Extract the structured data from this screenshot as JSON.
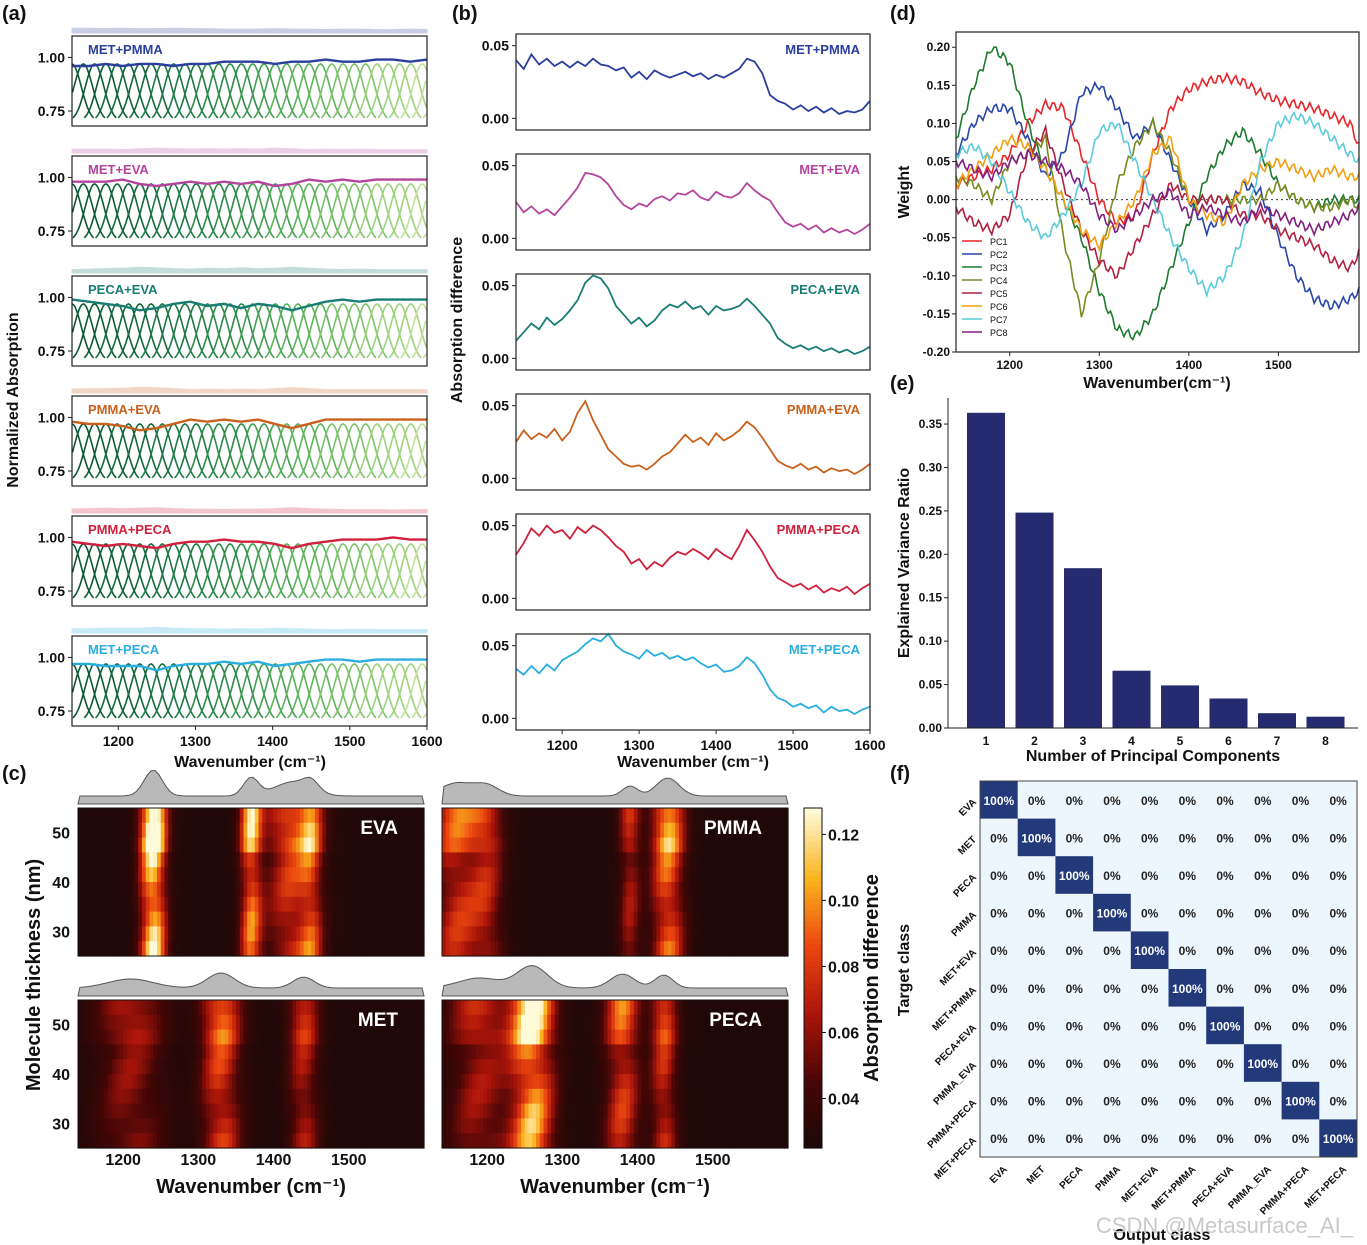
{
  "panel_labels": [
    "(a)",
    "(b)",
    "(c)",
    "(d)",
    "(e)",
    "(f)"
  ],
  "watermark": "CSDN @Metasurface_AI_",
  "chart_data": [
    {
      "id": "a",
      "type": "line",
      "title": "",
      "xlabel": "Wavenumber (cm⁻¹)",
      "ylabel": "Normalized Absorption",
      "xlim": [
        1140,
        1600
      ],
      "ylim": [
        0.68,
        1.1
      ],
      "xticks": [
        "1200",
        "1300",
        "1400",
        "1500",
        "1600"
      ],
      "yticks": [
        "0.75",
        "1.00"
      ],
      "series": [
        {
          "name": "MET+PMMA",
          "color": "#2b3f9e",
          "envelope": [
            0.96,
            0.96,
            0.97,
            0.96,
            0.97,
            0.97,
            0.96,
            0.97,
            0.97,
            0.98,
            0.98,
            0.98,
            0.97,
            0.98,
            0.98,
            0.99,
            0.98,
            0.98,
            0.99,
            0.99,
            0.98,
            0.99
          ]
        },
        {
          "name": "MET+EVA",
          "color": "#b5449e",
          "envelope": [
            0.98,
            0.98,
            0.98,
            0.99,
            0.97,
            0.96,
            0.97,
            0.98,
            0.97,
            0.98,
            0.97,
            0.98,
            0.96,
            0.97,
            0.99,
            0.98,
            0.99,
            0.98,
            0.99,
            0.99,
            0.99,
            0.99
          ]
        },
        {
          "name": "PECA+EVA",
          "color": "#1a7d73",
          "envelope": [
            0.99,
            0.98,
            0.97,
            0.96,
            0.94,
            0.95,
            0.97,
            0.98,
            0.96,
            0.97,
            0.95,
            0.97,
            0.96,
            0.94,
            0.96,
            0.98,
            0.99,
            0.98,
            0.99,
            0.99,
            0.99,
            0.99
          ]
        },
        {
          "name": "PMMA+EVA",
          "color": "#c9611e",
          "envelope": [
            0.98,
            0.97,
            0.97,
            0.96,
            0.94,
            0.95,
            0.97,
            0.99,
            0.98,
            0.99,
            0.98,
            0.99,
            0.97,
            0.95,
            0.97,
            0.99,
            0.99,
            0.99,
            0.99,
            0.99,
            0.99,
            0.99
          ]
        },
        {
          "name": "PMMA+PECA",
          "color": "#d0203c",
          "envelope": [
            0.98,
            0.97,
            0.96,
            0.97,
            0.96,
            0.95,
            0.97,
            0.98,
            0.98,
            0.99,
            0.98,
            0.98,
            0.97,
            0.95,
            0.97,
            0.98,
            0.99,
            0.99,
            0.99,
            1.0,
            0.99,
            0.99
          ]
        },
        {
          "name": "MET+PECA",
          "color": "#2aaee0",
          "envelope": [
            0.97,
            0.97,
            0.96,
            0.96,
            0.96,
            0.94,
            0.96,
            0.97,
            0.97,
            0.98,
            0.97,
            0.98,
            0.96,
            0.97,
            0.98,
            0.99,
            0.99,
            0.98,
            0.99,
            0.99,
            0.99,
            0.99
          ]
        }
      ]
    },
    {
      "id": "b",
      "type": "line",
      "title": "",
      "xlabel": "Wavenumber (cm⁻¹)",
      "ylabel": "Absorption difference",
      "xlim": [
        1140,
        1600
      ],
      "ylim": [
        -0.008,
        0.058
      ],
      "xticks": [
        "1200",
        "1300",
        "1400",
        "1500",
        "1600"
      ],
      "yticks": [
        "0.00",
        "0.05"
      ],
      "x": [
        1140,
        1150,
        1160,
        1170,
        1180,
        1190,
        1200,
        1210,
        1220,
        1230,
        1240,
        1250,
        1260,
        1270,
        1280,
        1290,
        1300,
        1310,
        1320,
        1330,
        1340,
        1350,
        1360,
        1370,
        1380,
        1390,
        1400,
        1410,
        1420,
        1430,
        1440,
        1450,
        1460,
        1470,
        1480,
        1490,
        1500,
        1510,
        1520,
        1530,
        1540,
        1550,
        1560,
        1570,
        1580,
        1590,
        1600
      ],
      "series": [
        {
          "name": "MET+PMMA",
          "color": "#2b3f9e",
          "values": [
            0.04,
            0.034,
            0.044,
            0.037,
            0.041,
            0.036,
            0.039,
            0.035,
            0.039,
            0.036,
            0.041,
            0.037,
            0.036,
            0.033,
            0.035,
            0.028,
            0.032,
            0.027,
            0.033,
            0.03,
            0.028,
            0.03,
            0.032,
            0.029,
            0.031,
            0.027,
            0.03,
            0.028,
            0.031,
            0.034,
            0.041,
            0.039,
            0.031,
            0.016,
            0.012,
            0.01,
            0.006,
            0.009,
            0.005,
            0.008,
            0.004,
            0.007,
            0.003,
            0.005,
            0.004,
            0.006,
            0.012
          ]
        },
        {
          "name": "MET+EVA",
          "color": "#b5449e",
          "values": [
            0.025,
            0.018,
            0.022,
            0.017,
            0.02,
            0.016,
            0.022,
            0.028,
            0.035,
            0.045,
            0.044,
            0.042,
            0.037,
            0.029,
            0.023,
            0.02,
            0.024,
            0.022,
            0.027,
            0.029,
            0.026,
            0.031,
            0.03,
            0.033,
            0.028,
            0.026,
            0.032,
            0.029,
            0.028,
            0.031,
            0.038,
            0.033,
            0.029,
            0.026,
            0.018,
            0.011,
            0.008,
            0.01,
            0.006,
            0.009,
            0.004,
            0.007,
            0.004,
            0.006,
            0.003,
            0.006,
            0.01
          ]
        },
        {
          "name": "PECA+EVA",
          "color": "#1a7d73",
          "values": [
            0.012,
            0.018,
            0.024,
            0.02,
            0.028,
            0.023,
            0.027,
            0.033,
            0.04,
            0.052,
            0.057,
            0.055,
            0.048,
            0.036,
            0.03,
            0.024,
            0.028,
            0.022,
            0.026,
            0.033,
            0.037,
            0.035,
            0.039,
            0.034,
            0.036,
            0.03,
            0.036,
            0.033,
            0.034,
            0.036,
            0.041,
            0.036,
            0.03,
            0.024,
            0.014,
            0.01,
            0.007,
            0.009,
            0.006,
            0.008,
            0.005,
            0.007,
            0.004,
            0.006,
            0.003,
            0.005,
            0.008
          ]
        },
        {
          "name": "PMMA+EVA",
          "color": "#c9611e",
          "values": [
            0.025,
            0.033,
            0.027,
            0.031,
            0.028,
            0.034,
            0.026,
            0.032,
            0.045,
            0.053,
            0.04,
            0.03,
            0.02,
            0.015,
            0.01,
            0.008,
            0.009,
            0.006,
            0.01,
            0.015,
            0.018,
            0.024,
            0.03,
            0.025,
            0.028,
            0.023,
            0.031,
            0.026,
            0.029,
            0.033,
            0.039,
            0.035,
            0.028,
            0.02,
            0.012,
            0.009,
            0.007,
            0.01,
            0.006,
            0.008,
            0.004,
            0.007,
            0.005,
            0.006,
            0.003,
            0.006,
            0.01
          ]
        },
        {
          "name": "PMMA+PECA",
          "color": "#d0203c",
          "values": [
            0.03,
            0.038,
            0.048,
            0.043,
            0.05,
            0.045,
            0.047,
            0.041,
            0.049,
            0.045,
            0.05,
            0.047,
            0.042,
            0.036,
            0.032,
            0.024,
            0.027,
            0.02,
            0.025,
            0.022,
            0.028,
            0.032,
            0.03,
            0.034,
            0.031,
            0.027,
            0.034,
            0.03,
            0.027,
            0.036,
            0.047,
            0.04,
            0.032,
            0.022,
            0.014,
            0.011,
            0.008,
            0.01,
            0.006,
            0.009,
            0.004,
            0.007,
            0.005,
            0.008,
            0.003,
            0.007,
            0.01
          ]
        },
        {
          "name": "MET+PECA",
          "color": "#2aaee0",
          "values": [
            0.034,
            0.03,
            0.036,
            0.031,
            0.037,
            0.033,
            0.04,
            0.043,
            0.046,
            0.051,
            0.055,
            0.053,
            0.058,
            0.05,
            0.046,
            0.044,
            0.041,
            0.047,
            0.043,
            0.045,
            0.041,
            0.043,
            0.04,
            0.042,
            0.038,
            0.035,
            0.037,
            0.032,
            0.033,
            0.036,
            0.042,
            0.038,
            0.03,
            0.02,
            0.014,
            0.012,
            0.008,
            0.01,
            0.007,
            0.009,
            0.004,
            0.008,
            0.005,
            0.006,
            0.003,
            0.006,
            0.008
          ]
        }
      ]
    },
    {
      "id": "c",
      "type": "heatmap",
      "xlabel": "Wavenumber (cm⁻¹)",
      "ylabel": "Molecule thickness (nm)",
      "colorbar_label": "Absorption difference",
      "colorbar_ticks": [
        "0.04",
        "0.06",
        "0.08",
        "0.10",
        "0.12"
      ],
      "colorbar_range": [
        0.025,
        0.128
      ],
      "xlim": [
        1140,
        1600
      ],
      "ylim": [
        25,
        55
      ],
      "xticks": [
        "1200",
        "1300",
        "1400",
        "1500"
      ],
      "yticks": [
        "30",
        "40",
        "50"
      ],
      "maps": [
        {
          "name": "EVA",
          "peaks": [
            {
              "center": 1240,
              "width": 12,
              "amp": 0.13
            },
            {
              "center": 1370,
              "width": 10,
              "amp": 0.09
            },
            {
              "center": 1425,
              "width": 24,
              "amp": 0.07
            },
            {
              "center": 1450,
              "width": 10,
              "amp": 0.05
            }
          ]
        },
        {
          "name": "PMMA",
          "peaks": [
            {
              "center": 1160,
              "width": 22,
              "amp": 0.065
            },
            {
              "center": 1200,
              "width": 16,
              "amp": 0.05
            },
            {
              "center": 1390,
              "width": 10,
              "amp": 0.05
            },
            {
              "center": 1440,
              "width": 15,
              "amp": 0.09
            }
          ]
        },
        {
          "name": "MET",
          "peaks": [
            {
              "center": 1210,
              "width": 30,
              "amp": 0.045
            },
            {
              "center": 1330,
              "width": 18,
              "amp": 0.075
            },
            {
              "center": 1440,
              "width": 14,
              "amp": 0.055
            }
          ]
        },
        {
          "name": "PECA",
          "peaks": [
            {
              "center": 1190,
              "width": 28,
              "amp": 0.05
            },
            {
              "center": 1260,
              "width": 20,
              "amp": 0.11
            },
            {
              "center": 1380,
              "width": 16,
              "amp": 0.07
            },
            {
              "center": 1435,
              "width": 12,
              "amp": 0.065
            }
          ]
        }
      ]
    },
    {
      "id": "d",
      "type": "line",
      "xlabel": "Wavenumber(cm⁻¹)",
      "ylabel": "Weight",
      "xlim": [
        1140,
        1590
      ],
      "ylim": [
        -0.2,
        0.22
      ],
      "xticks": [
        "1200",
        "1300",
        "1400",
        "1500"
      ],
      "yticks": [
        "-0.20",
        "-0.15",
        "-0.10",
        "-0.05",
        "0.00",
        "0.05",
        "0.10",
        "0.15",
        "0.20"
      ],
      "x": [
        1140,
        1160,
        1180,
        1200,
        1220,
        1240,
        1260,
        1280,
        1300,
        1320,
        1340,
        1360,
        1380,
        1400,
        1420,
        1440,
        1460,
        1480,
        1500,
        1520,
        1540,
        1560,
        1580,
        1590
      ],
      "series": [
        {
          "name": "PC1",
          "color": "#e8262a",
          "values": [
            0.02,
            0.03,
            0.04,
            0.06,
            0.1,
            0.125,
            0.12,
            0.06,
            0.0,
            -0.03,
            -0.02,
            0.06,
            0.12,
            0.145,
            0.155,
            0.16,
            0.155,
            0.14,
            0.13,
            0.125,
            0.12,
            0.11,
            0.1,
            0.07
          ]
        },
        {
          "name": "PC2",
          "color": "#2846a6",
          "values": [
            0.06,
            0.1,
            0.12,
            0.12,
            0.08,
            0.03,
            0.06,
            0.14,
            0.15,
            0.12,
            0.08,
            0.1,
            0.05,
            0.0,
            -0.04,
            -0.02,
            0.02,
            0.01,
            -0.05,
            -0.1,
            -0.13,
            -0.14,
            -0.13,
            -0.12
          ]
        },
        {
          "name": "PC3",
          "color": "#1e7a2e",
          "values": [
            0.08,
            0.15,
            0.2,
            0.18,
            0.1,
            0.04,
            0.0,
            -0.05,
            -0.12,
            -0.17,
            -0.18,
            -0.15,
            -0.09,
            -0.03,
            0.03,
            0.07,
            0.09,
            0.06,
            0.02,
            0.0,
            -0.01,
            -0.0,
            0.0,
            0.0
          ]
        },
        {
          "name": "PC4",
          "color": "#7a8a20",
          "values": [
            0.03,
            0.02,
            0.0,
            0.05,
            0.06,
            0.08,
            -0.05,
            -0.15,
            -0.08,
            0.02,
            0.07,
            0.1,
            0.06,
            0.0,
            0.0,
            0.0,
            0.0,
            0.0,
            0.02,
            0.0,
            -0.01,
            -0.01,
            0.0,
            -0.01
          ]
        },
        {
          "name": "PC5",
          "color": "#b02040",
          "values": [
            -0.01,
            -0.03,
            -0.04,
            -0.02,
            0.06,
            0.09,
            0.02,
            -0.04,
            -0.08,
            -0.1,
            -0.06,
            -0.02,
            0.02,
            0.0,
            0.0,
            0.0,
            -0.02,
            -0.02,
            -0.04,
            -0.05,
            -0.06,
            -0.08,
            -0.09,
            -0.07
          ]
        },
        {
          "name": "PC6",
          "color": "#f0a010",
          "values": [
            0.02,
            0.04,
            0.06,
            0.08,
            0.07,
            0.04,
            0.0,
            -0.04,
            -0.06,
            -0.03,
            0.0,
            0.06,
            0.08,
            0.0,
            -0.02,
            -0.03,
            0.02,
            0.04,
            0.05,
            0.04,
            0.03,
            0.04,
            0.03,
            0.03
          ]
        },
        {
          "name": "PC7",
          "color": "#5ccbdb",
          "values": [
            0.06,
            0.07,
            0.05,
            0.01,
            -0.03,
            -0.05,
            -0.02,
            0.02,
            0.09,
            0.1,
            0.05,
            0.0,
            -0.05,
            -0.09,
            -0.12,
            -0.1,
            -0.05,
            0.05,
            0.1,
            0.11,
            0.1,
            0.08,
            0.06,
            0.05
          ]
        },
        {
          "name": "PC8",
          "color": "#802080",
          "values": [
            0.05,
            0.04,
            0.03,
            0.05,
            0.06,
            0.05,
            0.04,
            0.02,
            -0.02,
            -0.04,
            -0.02,
            0.0,
            0.01,
            -0.02,
            -0.01,
            -0.02,
            -0.03,
            -0.01,
            -0.02,
            -0.03,
            -0.04,
            -0.03,
            -0.02,
            -0.01
          ]
        }
      ]
    },
    {
      "id": "e",
      "type": "bar",
      "xlabel": "Number of Principal Components",
      "ylabel": "Explained Variance Ratio",
      "categories": [
        "1",
        "2",
        "3",
        "4",
        "5",
        "6",
        "7",
        "8"
      ],
      "values": [
        0.363,
        0.248,
        0.184,
        0.066,
        0.049,
        0.034,
        0.017,
        0.013
      ],
      "ylim": [
        0,
        0.38
      ],
      "yticks": [
        "0.00",
        "0.05",
        "0.10",
        "0.15",
        "0.20",
        "0.25",
        "0.30",
        "0.35"
      ],
      "color": "#252b6e"
    },
    {
      "id": "f",
      "type": "heatmap",
      "xlabel": "Output class",
      "ylabel": "Target class",
      "row_labels": [
        "EVA",
        "MET",
        "PECA",
        "PMMA",
        "MET+EVA",
        "MET+PMMA",
        "PECA+EVA",
        "PMMA_EVA",
        "PMMA+PECA",
        "MET+PECA"
      ],
      "col_labels": [
        "EVA",
        "MET",
        "PECA",
        "PMMA",
        "MET+EVA",
        "MET+PMMA",
        "PECA+EVA",
        "PMMA_EVA",
        "PMMA+PECA",
        "MET+PECA"
      ],
      "diag_text": "100%",
      "off_text": "0%",
      "diag_color": "#223a7a",
      "off_color": "#eef6fd"
    }
  ]
}
